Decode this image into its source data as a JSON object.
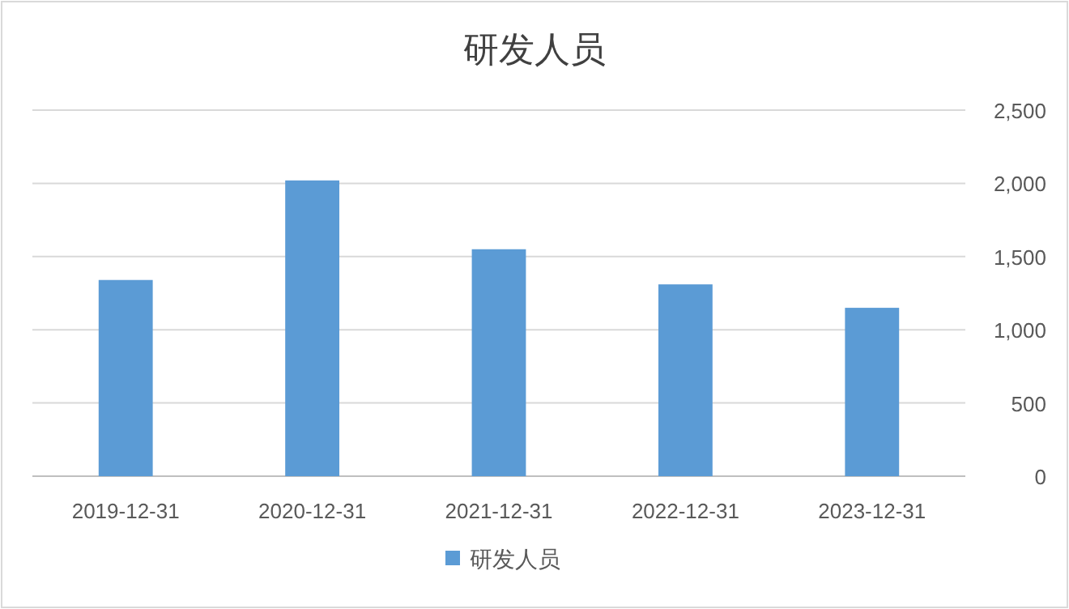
{
  "chart_data": {
    "type": "bar",
    "title": "研发人员",
    "categories": [
      "2019-12-31",
      "2020-12-31",
      "2021-12-31",
      "2022-12-31",
      "2023-12-31"
    ],
    "series": [
      {
        "name": "研发人员",
        "color": "#5b9bd5",
        "values": [
          1340,
          2020,
          1550,
          1310,
          1150
        ]
      }
    ],
    "ylim": [
      0,
      2500
    ],
    "yticks": [
      0,
      {
        "value": 500,
        "label": "500"
      },
      {
        "value": 1000,
        "label": "1,000"
      },
      {
        "value": 1500,
        "label": "1,500"
      },
      {
        "value": 2000,
        "label": "2,000"
      },
      {
        "value": 2500,
        "label": "2,500"
      }
    ],
    "grid": "y",
    "legend": "bottom"
  }
}
